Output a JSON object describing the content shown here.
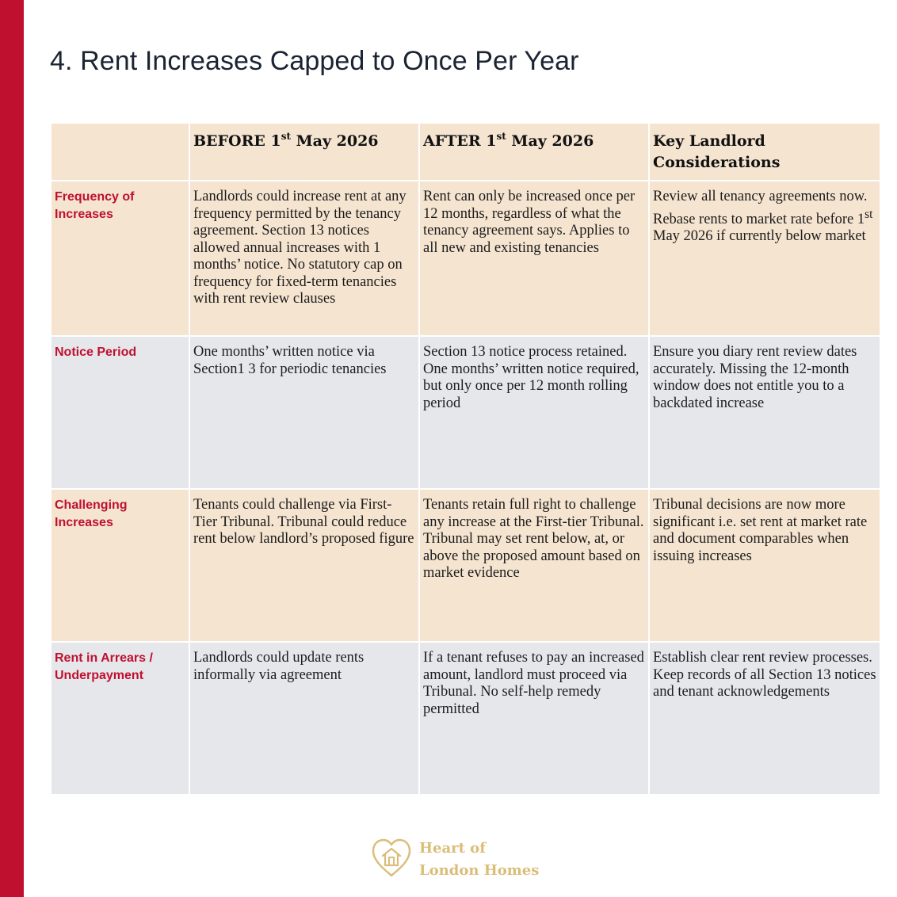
{
  "page": {
    "title": "4. Rent Increases Capped to Once Per Year"
  },
  "table": {
    "headers": [
      {
        "text": "",
        "sup": "",
        "rest": ""
      },
      {
        "text": "BEFORE 1",
        "sup": "st",
        "rest": " May 2026"
      },
      {
        "text": "AFTER 1",
        "sup": "st",
        "rest": " May 2026"
      },
      {
        "text": "Key Landlord Considerations",
        "sup": "",
        "rest": ""
      }
    ],
    "rows": [
      {
        "label": "Frequency of Increases",
        "before": "Landlords could increase rent at any frequency permitted by the tenancy agreement. Section 13 notices allowed annual increases with 1 months’ notice. No statutory cap on frequency for fixed-term tenancies with rent review clauses",
        "after": "Rent can only be increased once per 12 months, regardless of what the tenancy agreement says. Applies to all new and existing tenancies",
        "considerations": {
          "pre": "Review all tenancy agreements now. Rebase rents to market rate before 1",
          "sup": "st",
          "post": " May 2026 if currently below market"
        }
      },
      {
        "label": "Notice Period",
        "before": "One months’ written notice via Section1 3 for periodic tenancies",
        "after": "Section 13 notice process retained. One months’ written notice required, but only once per 12 month rolling period",
        "considerations": {
          "pre": "Ensure you diary rent review dates accurately. Missing the 12-month window does not entitle you to a backdated increase",
          "sup": "",
          "post": ""
        }
      },
      {
        "label": "Challenging Increases",
        "before": "Tenants could challenge via First-Tier Tribunal. Tribunal could reduce rent below landlord’s proposed figure",
        "after": "Tenants retain full right to challenge any increase at the First-tier Tribunal. Tribunal may set rent below, at, or above the proposed amount based on market evidence",
        "considerations": {
          "pre": "Tribunal decisions are now more significant i.e. set rent at market rate and document comparables when issuing increases",
          "sup": "",
          "post": ""
        }
      },
      {
        "label": "Rent in Arrears / Underpayment",
        "before": "Landlords could update rents informally via agreement",
        "after": "If a tenant refuses to pay an increased amount, landlord must proceed via Tribunal. No self-help remedy permitted",
        "considerations": {
          "pre": "Establish clear rent review processes. Keep records of all Section 13 notices and tenant acknowledgements",
          "sup": "",
          "post": ""
        }
      }
    ]
  },
  "logo": {
    "line1": "Heart of",
    "line2": "London Homes",
    "icon": "heart-house-icon",
    "color": "#dbbd78"
  },
  "colors": {
    "accent": "#c0102f",
    "beige_row": "#f4e4d0",
    "grey_row": "#e6e7eb"
  }
}
